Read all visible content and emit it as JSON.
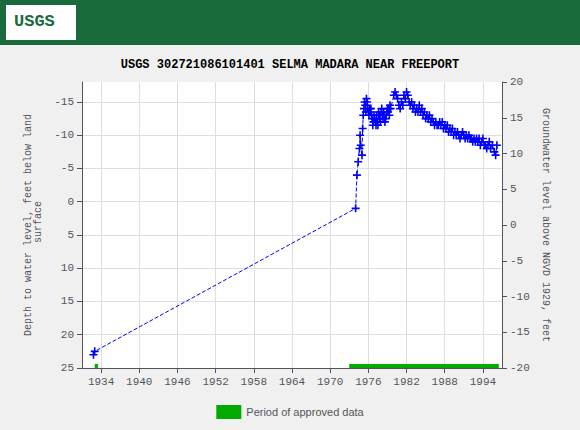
{
  "chart_data": {
    "type": "line",
    "title": "USGS 302721086101401 SELMA MADARA NEAR FREEPORT",
    "ylabel": "Depth to water level, feet below land\n surface",
    "y2label": "Groundwater level above NGVD 1929, feet",
    "xlim": [
      1931,
      1997
    ],
    "ylim": [
      25,
      -18
    ],
    "y2lim": [
      -20,
      20
    ],
    "xticks": [
      1934,
      1940,
      1946,
      1952,
      1958,
      1964,
      1970,
      1976,
      1982,
      1988,
      1994
    ],
    "yticks": [
      -15,
      -10,
      -5,
      0,
      5,
      10,
      15,
      20,
      25
    ],
    "y2ticks": [
      20,
      15,
      10,
      5,
      0,
      -5,
      -10,
      -15,
      -20
    ],
    "grid": true,
    "legend": "bottom",
    "annotations": [
      {
        "text": "USGS",
        "color": "#1a6b3c"
      }
    ],
    "series": [
      {
        "type": "line",
        "color": "#0000ff",
        "marker": "+",
        "line_style": "dashed",
        "x": [
          1932.8,
          1933.0,
          1974.0,
          1974.2,
          1974.4,
          1974.6,
          1974.7,
          1974.8,
          1975.0,
          1975.1,
          1975.2,
          1975.3,
          1975.4,
          1975.5,
          1975.6,
          1975.7,
          1975.8,
          1975.9,
          1976.0,
          1976.1,
          1976.2,
          1976.3,
          1976.4,
          1976.5,
          1976.6,
          1976.7,
          1976.8,
          1976.9,
          1977.0,
          1977.1,
          1977.2,
          1977.3,
          1977.4,
          1977.5,
          1977.6,
          1977.7,
          1977.8,
          1977.9,
          1978.0,
          1978.1,
          1978.2,
          1978.3,
          1978.4,
          1978.5,
          1978.6,
          1978.7,
          1978.8,
          1978.9,
          1979.0,
          1979.1,
          1979.2,
          1979.3,
          1979.4,
          1979.5,
          1980.0,
          1980.2,
          1980.4,
          1980.6,
          1980.8,
          1981.0,
          1981.2,
          1981.4,
          1981.6,
          1981.8,
          1982.0,
          1982.2,
          1982.4,
          1982.6,
          1982.8,
          1983.0,
          1983.2,
          1983.4,
          1983.6,
          1983.8,
          1984.0,
          1984.2,
          1984.4,
          1984.6,
          1984.8,
          1985.0,
          1985.2,
          1985.4,
          1985.6,
          1985.8,
          1986.0,
          1986.2,
          1986.4,
          1986.6,
          1986.8,
          1987.0,
          1987.2,
          1987.4,
          1987.6,
          1987.8,
          1988.0,
          1988.2,
          1988.4,
          1988.6,
          1988.8,
          1989.0,
          1989.2,
          1989.4,
          1989.6,
          1989.8,
          1990.0,
          1990.2,
          1990.4,
          1990.6,
          1990.8,
          1991.0,
          1991.2,
          1991.4,
          1991.6,
          1991.8,
          1992.0,
          1992.2,
          1992.4,
          1992.6,
          1992.8,
          1993.0,
          1993.2,
          1993.4,
          1993.6,
          1993.8,
          1994.0,
          1994.2,
          1994.4,
          1994.6,
          1994.8,
          1995.0,
          1995.2,
          1995.5,
          1995.8,
          1996.0,
          1996.2
        ],
        "values": [
          23.0,
          22.5,
          1.0,
          -4.0,
          -6.0,
          -8.0,
          -10.0,
          -8.5,
          -7.0,
          -11.0,
          -13.0,
          -14.0,
          -15.0,
          -14.5,
          -13.5,
          -15.5,
          -15.0,
          -14.0,
          -13.5,
          -13.0,
          -14.0,
          -13.5,
          -14.0,
          -13.0,
          -12.5,
          -11.5,
          -12.0,
          -13.0,
          -12.5,
          -12.0,
          -11.5,
          -13.0,
          -12.0,
          -11.5,
          -13.5,
          -12.5,
          -13.0,
          -12.0,
          -13.5,
          -14.0,
          -13.0,
          -12.5,
          -13.5,
          -13.0,
          -12.0,
          -12.5,
          -13.0,
          -13.5,
          -14.0,
          -13.5,
          -14.0,
          -13.0,
          -14.5,
          -14.0,
          -16.0,
          -16.5,
          -16.0,
          -15.5,
          -14.5,
          -14.0,
          -15.0,
          -14.5,
          -16.0,
          -15.5,
          -16.5,
          -16.0,
          -15.0,
          -14.5,
          -15.0,
          -14.0,
          -14.5,
          -13.5,
          -14.0,
          -13.5,
          -14.5,
          -13.5,
          -14.0,
          -13.0,
          -13.5,
          -12.5,
          -13.0,
          -12.5,
          -13.0,
          -12.0,
          -12.5,
          -12.0,
          -11.5,
          -12.0,
          -11.5,
          -11.5,
          -12.0,
          -11.5,
          -12.0,
          -11.0,
          -11.5,
          -11.0,
          -11.5,
          -10.5,
          -11.0,
          -10.5,
          -11.0,
          -10.0,
          -10.5,
          -10.0,
          -10.5,
          -10.0,
          -9.5,
          -10.0,
          -10.5,
          -10.0,
          -9.5,
          -10.0,
          -9.5,
          -10.0,
          -9.5,
          -9.5,
          -9.0,
          -9.5,
          -9.0,
          -9.5,
          -9.0,
          -9.5,
          -8.5,
          -9.0,
          -9.5,
          -8.5,
          -8.5,
          -8.0,
          -8.5,
          -9.0,
          -8.0,
          -8.5,
          -7.5,
          -7.0,
          -8.5
        ]
      },
      {
        "name": "Period of approved data",
        "type": "bar",
        "orientation": "horizontal",
        "color": "#00aa00",
        "x": [
          [
            1933.0,
            1933.5
          ],
          [
            1973.0,
            1996.5
          ]
        ],
        "values": [
          25.0,
          25.0
        ]
      }
    ]
  }
}
